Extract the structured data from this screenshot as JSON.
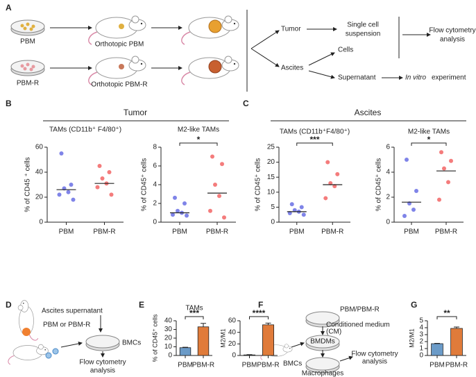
{
  "figure": {
    "letters": [
      "A",
      "B",
      "C",
      "D",
      "E",
      "F",
      "G"
    ],
    "group_titles": [
      "Tumor",
      "Ascites"
    ]
  },
  "panel_a": {
    "sources": [
      "PBM",
      "PBM-R"
    ],
    "models": [
      "Orthotopic PBM",
      "Orthotopic PBM-R"
    ],
    "samples": [
      "Tumor",
      "Ascites"
    ],
    "tumor_step": [
      "Single cell",
      "suspension"
    ],
    "analysis": [
      "Flow cytometry",
      "analysis"
    ],
    "ascites_parts": [
      "Cells",
      "Supernatant"
    ],
    "experiment_italic": "In vitro",
    "experiment_rest": "experiment"
  },
  "panel_d": {
    "treatment": "Ascites supernatant",
    "source": "PBM or PBM-R",
    "cells": "BMCs",
    "readout": [
      "Flow cytometry",
      "analysis"
    ]
  },
  "panel_f": {
    "source": "PBM/PBM-R",
    "medium": [
      "Conditioned medium",
      "(CM)"
    ],
    "cells": "BMCs",
    "derived": "BMDMs",
    "readout": [
      "Flow cytometry",
      "analysis"
    ],
    "product": "Macrophages"
  },
  "chart_data": [
    {
      "type": "strip",
      "title": "TAMs (CD11b⁺ F4/80⁺)",
      "ylabel": "% of CD45 ⁺ cells",
      "categories": [
        "PBM",
        "PBM-R"
      ],
      "ylim": [
        0,
        60
      ],
      "yticks": [
        0,
        20,
        40,
        60
      ],
      "series": [
        {
          "color": "#7f84e8",
          "values": [
            55,
            30,
            27,
            24,
            22,
            18
          ],
          "median": 26
        },
        {
          "color": "#f47c7c",
          "values": [
            45,
            40,
            35,
            31,
            28,
            22
          ],
          "median": 31
        }
      ]
    },
    {
      "type": "strip",
      "title": "M2-like TAMs",
      "ylabel": "% of CD45⁺ cells",
      "categories": [
        "PBM",
        "PBM-R"
      ],
      "ylim": [
        0,
        8
      ],
      "yticks": [
        0,
        2,
        4,
        6,
        8
      ],
      "significance": "*",
      "series": [
        {
          "color": "#7f84e8",
          "values": [
            2.6,
            2.0,
            1.2,
            1.0,
            0.8,
            0.7
          ],
          "median": 1.0
        },
        {
          "color": "#f47c7c",
          "values": [
            7.0,
            6.2,
            4.0,
            2.8,
            1.2,
            0.5
          ],
          "median": 3.1
        }
      ]
    },
    {
      "type": "strip",
      "title": "TAMs (CD11b⁺F4/80⁺)",
      "ylabel": "% of CD45⁺ cells",
      "categories": [
        "PBM",
        "PBM-R"
      ],
      "ylim": [
        0,
        25
      ],
      "yticks": [
        0,
        5,
        10,
        15,
        20,
        25
      ],
      "significance": "***",
      "series": [
        {
          "color": "#7f84e8",
          "values": [
            6,
            5,
            4,
            3.5,
            3,
            2.5
          ],
          "median": 3.5
        },
        {
          "color": "#f47c7c",
          "values": [
            20,
            16,
            13,
            12,
            8
          ],
          "median": 12.5
        }
      ]
    },
    {
      "type": "strip",
      "title": "M2-like TAMs",
      "ylabel": "% of CD45⁺ cells",
      "categories": [
        "PBM",
        "PBM-R"
      ],
      "ylim": [
        0,
        6
      ],
      "yticks": [
        0,
        2,
        4,
        6
      ],
      "significance": "*",
      "series": [
        {
          "color": "#7f84e8",
          "values": [
            5,
            2.5,
            1.5,
            1.0,
            0.5
          ],
          "median": 1.6
        },
        {
          "color": "#f47c7c",
          "values": [
            5.6,
            4.9,
            4.3,
            3.2,
            1.8
          ],
          "median": 4.1
        }
      ]
    },
    {
      "type": "bar",
      "title": "TAMs",
      "ylabel": "% of CD45⁺ cells",
      "categories": [
        "PBM",
        "PBM-R"
      ],
      "ylim": [
        0,
        40
      ],
      "yticks": [
        0,
        10,
        20,
        30,
        40
      ],
      "significance": "***",
      "series": [
        {
          "values": [
            9,
            33
          ],
          "errors": [
            0.5,
            4
          ],
          "colors": [
            "#6b9bc8",
            "#e07b3a"
          ]
        }
      ]
    },
    {
      "type": "bar",
      "ylabel": "M2/M1",
      "categories": [
        "PBM",
        "PBM-R"
      ],
      "ylim": [
        0,
        60
      ],
      "yticks": [
        0,
        20,
        40,
        60
      ],
      "significance": "****",
      "series": [
        {
          "values": [
            1,
            53
          ],
          "errors": [
            0.5,
            3
          ],
          "colors": [
            "#6b9bc8",
            "#e07b3a"
          ]
        }
      ]
    },
    {
      "type": "bar",
      "ylabel": "M2/M1",
      "categories": [
        "PBM",
        "PBM-R"
      ],
      "ylim": [
        0,
        5
      ],
      "yticks": [
        0,
        1,
        2,
        3,
        4,
        5
      ],
      "significance": "**",
      "series": [
        {
          "values": [
            1.7,
            3.9
          ],
          "errors": [
            0.05,
            0.2
          ],
          "colors": [
            "#6b9bc8",
            "#e07b3a"
          ]
        }
      ]
    }
  ]
}
